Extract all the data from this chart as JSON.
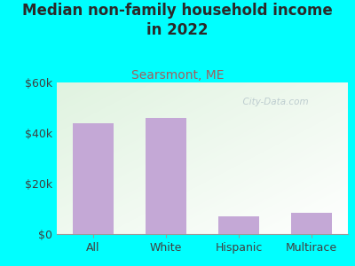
{
  "title": "Median non-family household income\nin 2022",
  "subtitle": "Searsmont, ME",
  "categories": [
    "All",
    "White",
    "Hispanic",
    "Multirace"
  ],
  "values": [
    44000,
    46000,
    7000,
    8500
  ],
  "bar_color": "#c4a8d6",
  "background_color": "#00ffff",
  "title_color": "#2a2a2a",
  "subtitle_color": "#a06060",
  "tick_label_color": "#404040",
  "ylim": [
    0,
    60000
  ],
  "yticks": [
    0,
    20000,
    40000,
    60000
  ],
  "ytick_labels": [
    "$0",
    "$20k",
    "$40k",
    "$60k"
  ],
  "watermark": "  City-Data.com",
  "watermark_color": "#b8c8cc",
  "title_fontsize": 12,
  "subtitle_fontsize": 10,
  "tick_fontsize": 9
}
